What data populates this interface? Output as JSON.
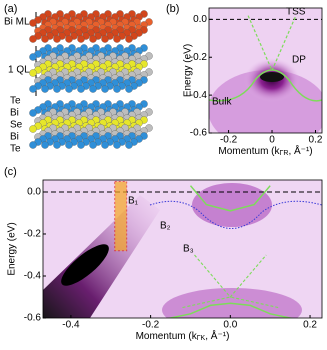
{
  "panel_a": {
    "label": "(a)",
    "layer_labels": [
      "Bi ML",
      "1 QL"
    ],
    "stack": [
      "Te",
      "Bi",
      "Se",
      "Bi",
      "Te"
    ]
  },
  "panel_b": {
    "label": "(b)",
    "annotations": [
      "TSS",
      "DP",
      "Bulk"
    ],
    "y_label": "Energy (eV)",
    "x_label": {
      "text": "Momentum (k",
      "sub": "ΓR",
      "tail": ", Å⁻¹)"
    },
    "xlim": [
      -0.29,
      0.23
    ],
    "ylim": [
      -0.6,
      0.06
    ],
    "xticks": [
      {
        "value": -0.2,
        "label": "-0.2"
      },
      {
        "value": 0,
        "label": "0"
      },
      {
        "value": 0.2,
        "label": "0.2"
      }
    ],
    "yticks": [
      {
        "value": 0,
        "label": "0.0"
      },
      {
        "value": -0.2,
        "label": "-0.2"
      },
      {
        "value": -0.4,
        "label": "-0.4"
      },
      {
        "value": -0.6,
        "label": "-0.6"
      }
    ]
  },
  "panel_c": {
    "label": "(c)",
    "annotations": [
      "B₁",
      "B₂",
      "B₃"
    ],
    "y_label": "Energy (eV)",
    "x_label": {
      "text": "Momentum (k",
      "sub": "ΓK",
      "tail": ", Å⁻¹)"
    },
    "xlim": [
      -0.47,
      0.23
    ],
    "ylim": [
      -0.6,
      0.057
    ],
    "xticks": [
      {
        "value": -0.4,
        "label": "-0.4"
      },
      {
        "value": -0.2,
        "label": "-0.2"
      },
      {
        "value": 0,
        "label": "0.0"
      },
      {
        "value": 0.2,
        "label": "0.2"
      }
    ],
    "yticks": [
      {
        "value": 0,
        "label": "0.0"
      },
      {
        "value": -0.2,
        "label": "-0.2"
      },
      {
        "value": -0.4,
        "label": "-0.4"
      },
      {
        "value": -0.6,
        "label": "-0.6"
      }
    ]
  }
}
